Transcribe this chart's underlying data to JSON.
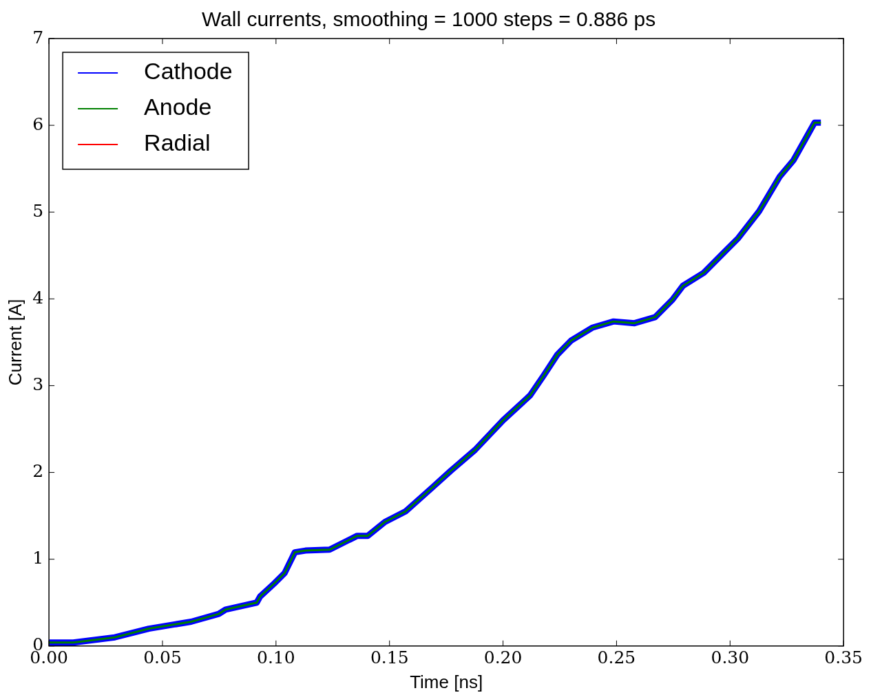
{
  "chart_data": {
    "type": "line",
    "title": "Wall currents, smoothing = 1000 steps = 0.886 ps",
    "xlabel": "Time [ns]",
    "ylabel": "Current [A]",
    "x": [
      0,
      0.0107,
      0.0168,
      0.029,
      0.044,
      0.0626,
      0.0748,
      0.0778,
      0.0915,
      0.093,
      0.0992,
      0.1038,
      0.1083,
      0.113,
      0.1236,
      0.1358,
      0.1404,
      0.148,
      0.157,
      0.169,
      0.177,
      0.1877,
      0.2,
      0.212,
      0.218,
      0.224,
      0.23,
      0.2395,
      0.2487,
      0.2579,
      0.267,
      0.2746,
      0.2792,
      0.2884,
      0.2975,
      0.3036,
      0.3128,
      0.3219,
      0.328,
      0.334,
      0.3372,
      0.34
    ],
    "series": [
      {
        "name": "Cathode",
        "color": "#0000ff",
        "values": [
          0.04,
          0.04,
          0.06,
          0.1,
          0.2,
          0.28,
          0.37,
          0.42,
          0.5,
          0.57,
          0.72,
          0.84,
          1.08,
          1.1,
          1.11,
          1.27,
          1.27,
          1.43,
          1.55,
          1.83,
          2.02,
          2.26,
          2.6,
          2.89,
          3.12,
          3.36,
          3.52,
          3.67,
          3.74,
          3.72,
          3.79,
          3.99,
          4.15,
          4.3,
          4.54,
          4.7,
          5.01,
          5.41,
          5.6,
          5.88,
          6.03,
          6.03
        ]
      },
      {
        "name": "Anode",
        "color": "#008000",
        "values": [
          0.04,
          0.04,
          0.06,
          0.1,
          0.2,
          0.28,
          0.37,
          0.42,
          0.5,
          0.57,
          0.72,
          0.84,
          1.08,
          1.1,
          1.11,
          1.27,
          1.27,
          1.43,
          1.55,
          1.83,
          2.02,
          2.26,
          2.6,
          2.89,
          3.12,
          3.36,
          3.52,
          3.67,
          3.74,
          3.72,
          3.79,
          3.99,
          4.15,
          4.3,
          4.54,
          4.7,
          5.01,
          5.41,
          5.6,
          5.88,
          6.03,
          6.03
        ]
      },
      {
        "name": "Radial",
        "color": "#ff0000",
        "values": [
          null,
          null,
          null,
          null,
          null,
          null,
          null,
          null,
          null,
          null,
          null,
          null,
          null,
          null,
          null,
          null,
          null,
          null,
          null,
          null,
          null,
          null,
          null,
          null,
          null,
          null,
          null,
          null,
          null,
          null,
          null,
          null,
          null,
          null,
          null,
          null,
          null,
          null,
          null,
          null,
          null,
          null
        ]
      }
    ],
    "xlim": [
      0,
      0.35
    ],
    "xticks": [
      {
        "value": 0,
        "label": "0.00"
      },
      {
        "value": 0.05,
        "label": "0.05"
      },
      {
        "value": 0.1,
        "label": "0.10"
      },
      {
        "value": 0.15,
        "label": "0.15"
      },
      {
        "value": 0.2,
        "label": "0.20"
      },
      {
        "value": 0.25,
        "label": "0.25"
      },
      {
        "value": 0.3,
        "label": "0.30"
      },
      {
        "value": 0.35,
        "label": "0.35"
      }
    ],
    "ylim": [
      0,
      7
    ],
    "yticks": [
      0,
      1,
      2,
      3,
      4,
      5,
      6,
      7
    ],
    "grid": false,
    "legend": "top left",
    "marker": "none",
    "line_style": "solid"
  }
}
